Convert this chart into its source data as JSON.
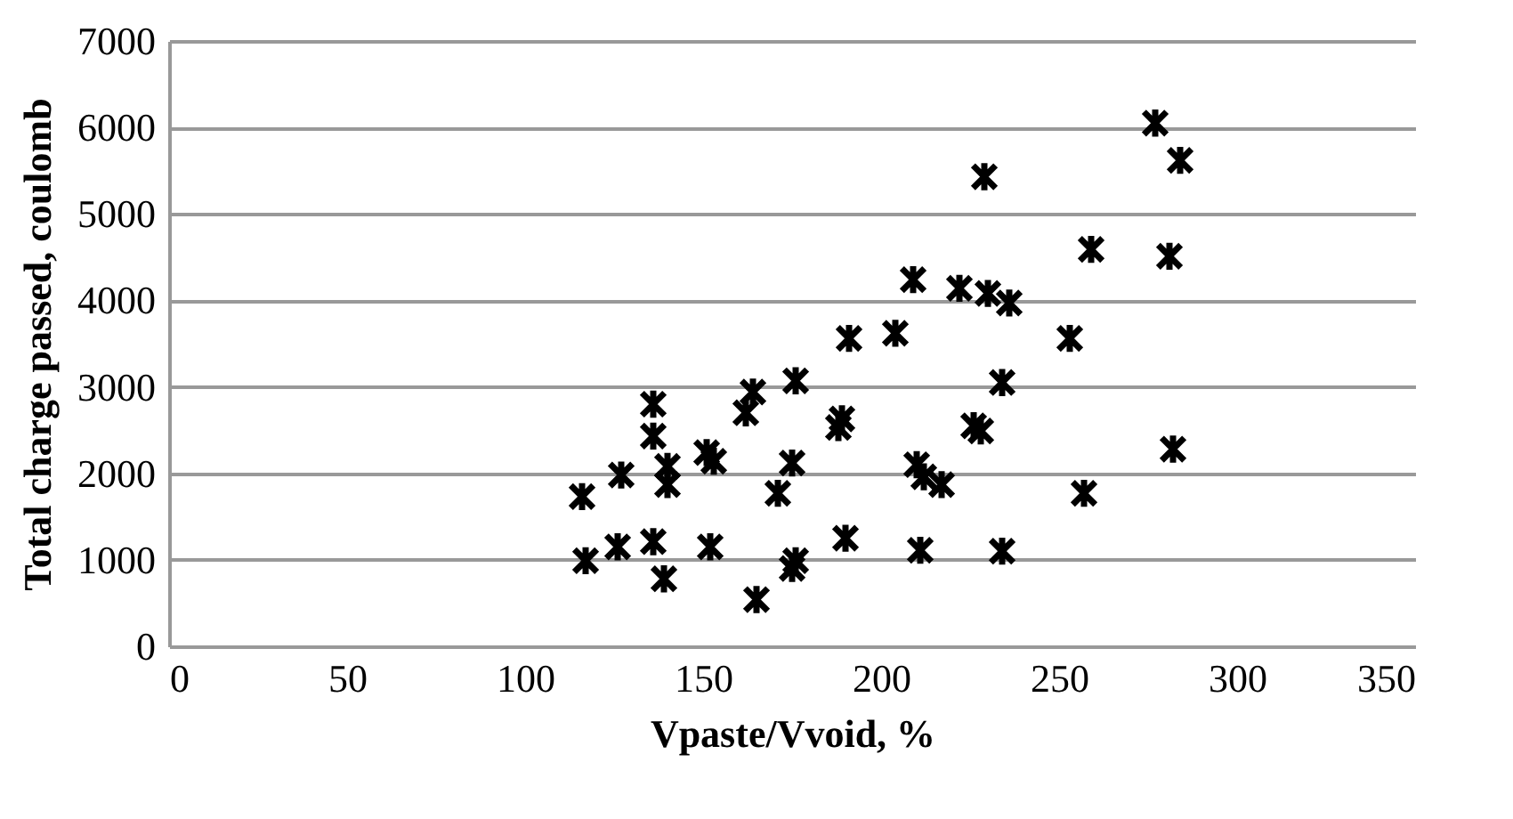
{
  "chart_data": {
    "type": "scatter",
    "xlabel": "Vpaste/Vvoid, %",
    "ylabel": "Total charge  passed, coulomb",
    "xlim": [
      0,
      350
    ],
    "xticks": [
      0,
      50,
      100,
      150,
      200,
      250,
      300,
      350
    ],
    "ylim": [
      0,
      7000
    ],
    "yticks": [
      0,
      1000,
      2000,
      3000,
      4000,
      5000,
      6000,
      7000
    ],
    "grid": "y",
    "marker": "cross",
    "series": [
      {
        "color": "#000000",
        "x": [
          116,
          117,
          127,
          126,
          136,
          136,
          140,
          140,
          136,
          139,
          151,
          153,
          152,
          165,
          162,
          164,
          176,
          175,
          171,
          176,
          175,
          189,
          190,
          188,
          191,
          204,
          210,
          212,
          217,
          211,
          277,
          284,
          229,
          259,
          281,
          209,
          222,
          230,
          236,
          253,
          234,
          228,
          226,
          282,
          257,
          234
        ],
        "values": [
          1730,
          990,
          1980,
          1150,
          2800,
          2430,
          1870,
          2080,
          1210,
          780,
          2240,
          2140,
          1150,
          540,
          2700,
          2940,
          3070,
          2120,
          1770,
          990,
          900,
          2630,
          1250,
          2530,
          3560,
          3620,
          2100,
          1960,
          1870,
          1110,
          6050,
          5620,
          5430,
          4590,
          4510,
          4240,
          4140,
          4080,
          3970,
          3560,
          3050,
          2490,
          2550,
          2280,
          1770,
          1100
        ]
      }
    ]
  }
}
